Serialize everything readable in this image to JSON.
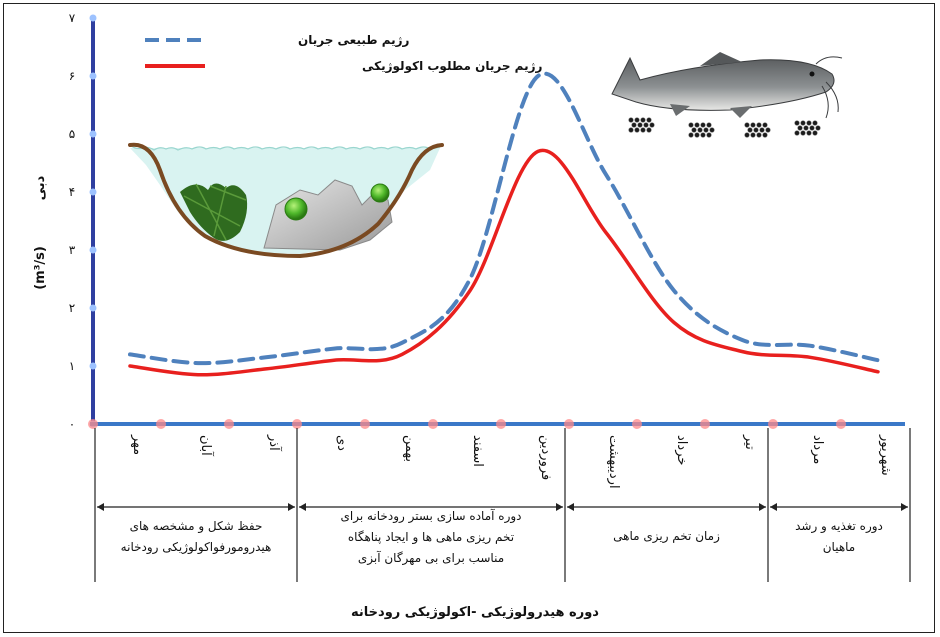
{
  "chart_data": {
    "type": "line",
    "title": "",
    "xlabel": "دوره هیدرولوژیکی -اکولوژیکی رودخانه",
    "ylabel_name": "دبی",
    "ylabel_unit": "(m³/s)",
    "ylim": [
      0,
      7
    ],
    "y_ticks": [
      "۰",
      "۱",
      "۲",
      "۳",
      "۴",
      "۵",
      "۶",
      "۷"
    ],
    "categories": [
      "مهر",
      "آبان",
      "آذر",
      "دی",
      "بهمن",
      "اسفند",
      "فروردین",
      "اردیبهشت",
      "خرداد",
      "تیر",
      "مرداد",
      "شهریور"
    ],
    "series": [
      {
        "name": "رژیم طبیعی جریان",
        "color": "#4f81bd",
        "style": "dashed",
        "values": [
          1.2,
          1.05,
          1.15,
          1.3,
          1.4,
          2.5,
          6.0,
          4.3,
          2.3,
          1.45,
          1.35,
          1.1
        ]
      },
      {
        "name": "رژیم جریان مطلوب اکولوژیکی",
        "color": "#e8201e",
        "style": "solid",
        "values": [
          1.0,
          0.85,
          0.95,
          1.1,
          1.2,
          2.3,
          4.7,
          3.3,
          1.75,
          1.25,
          1.15,
          0.9
        ]
      }
    ],
    "legend_position": "top-left",
    "grid": false,
    "periods": [
      {
        "label_lines": [
          "حفظ شکل و مشخصه های",
          "هیدرومورفواکولوژیکی رودخانه"
        ],
        "months": [
          "مهر",
          "آبان",
          "آذر"
        ]
      },
      {
        "label_lines": [
          "دوره آماده سازی بستر رودخانه برای",
          "تخم ریزی ماهی ها و ایجاد پناهگاه",
          "مناسب برای بی مهرگان آبزی"
        ],
        "months": [
          "دی",
          "بهمن",
          "اسفند",
          "فروردین"
        ]
      },
      {
        "label_lines": [
          "زمان تخم ریزی ماهی"
        ],
        "months": [
          "اردیبهشت",
          "خرداد",
          "تیر"
        ]
      },
      {
        "label_lines": [
          "دوره تغذیه و رشد",
          "ماهیان"
        ],
        "months": [
          "مرداد",
          "شهریور"
        ]
      }
    ]
  },
  "colors": {
    "axis_y": "#2f3fa0",
    "axis_y_glow": "#7aa7ff",
    "axis_x": "#3a78c8",
    "axis_x_glow": "#ff5c5c",
    "water": "#d9f3f1",
    "riverbed": "#7a4a22"
  },
  "icons": {
    "river_cross_section": "river-cross-section-illustration",
    "fish": "catfish-illustration",
    "eggs": "fish-eggs-illustration"
  }
}
